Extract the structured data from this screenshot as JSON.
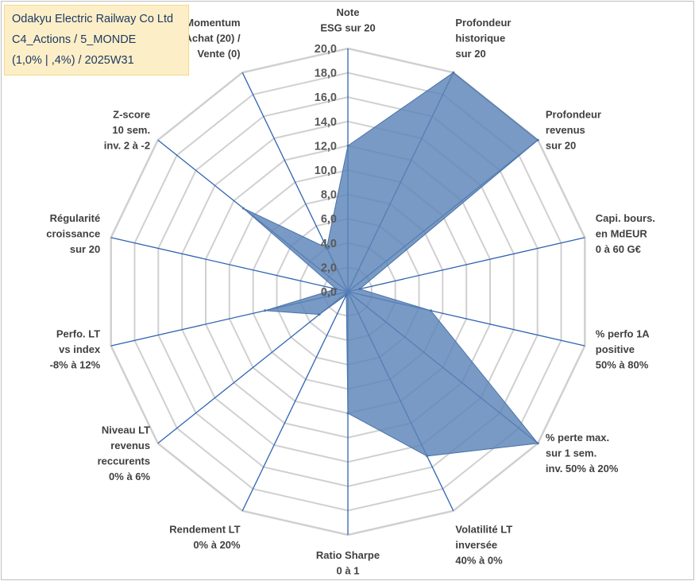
{
  "header": {
    "line1": "Odakyu Electric Railway Co Ltd",
    "line2": "C4_Actions / 5_MONDE",
    "line3": "(1,0% | ,4%) / 2025W31"
  },
  "chart_data": {
    "type": "radar",
    "title": "Odakyu Electric Railway Co Ltd C4_Actions / 5_MONDE (1,0% | ,4%) / 2025W31",
    "rmin": 0,
    "rmax": 20,
    "ticks": [
      "0,0",
      "2,0",
      "4,0",
      "6,0",
      "8,0",
      "10,0",
      "12,0",
      "14,0",
      "16,0",
      "18,0",
      "20,0"
    ],
    "grid": true,
    "series_color": "#5b84b7",
    "axes": [
      {
        "label": [
          "Note",
          "ESG sur 20"
        ],
        "value": 12.0
      },
      {
        "label": [
          "Profondeur",
          "historique",
          "sur 20"
        ],
        "value": 20.0
      },
      {
        "label": [
          "Profondeur",
          "revenus",
          "sur 20"
        ],
        "value": 20.0
      },
      {
        "label": [
          "Capi. bours.",
          "en MdEUR",
          "0 à 60 G€"
        ],
        "value": 1.0
      },
      {
        "label": [
          "% perfo 1A",
          "positive",
          "50% à 80%"
        ],
        "value": 7.0
      },
      {
        "label": [
          "% perte max.",
          "sur 1 sem.",
          "inv. 50% à 20%"
        ],
        "value": 20.0
      },
      {
        "label": [
          "Volatilité LT",
          "inversée",
          "40% à 0%"
        ],
        "value": 15.0
      },
      {
        "label": [
          "Ratio Sharpe",
          "0 à 1"
        ],
        "value": 10.0
      },
      {
        "label": [
          "Rendement LT",
          "0% à 20%"
        ],
        "value": 0.3
      },
      {
        "label": [
          "Niveau LT",
          "revenus",
          "reccurents",
          "0% à 6%"
        ],
        "value": 3.0
      },
      {
        "label": [
          "Perfo. LT",
          "vs index",
          "-8% à 12%"
        ],
        "value": 7.0
      },
      {
        "label": [
          "Régularité",
          "croissance",
          "sur 20"
        ],
        "value": 1.0
      },
      {
        "label": [
          "Z-score",
          "10 sem.",
          "inv. 2 à -2"
        ],
        "value": 11.0
      },
      {
        "label": [
          "Momentum",
          "Achat (20) /",
          "Vente (0)"
        ],
        "value": 4.0
      }
    ]
  }
}
